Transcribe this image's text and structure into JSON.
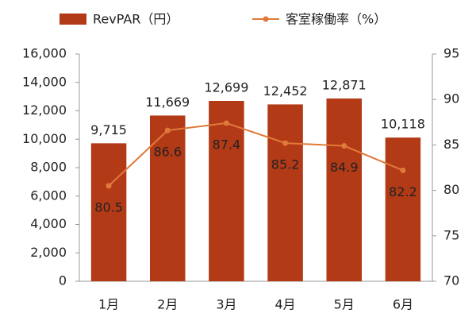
{
  "chart_data": {
    "type": "bar",
    "categories": [
      "1月",
      "2月",
      "3月",
      "4月",
      "5月",
      "6月"
    ],
    "series": [
      {
        "name": "RevPAR（円）",
        "color": "#b23a17",
        "values": [
          9715,
          11669,
          12699,
          12452,
          12871,
          10118
        ],
        "value_labels": [
          "9,715",
          "11,669",
          "12,699",
          "12,452",
          "12,871",
          "10,118"
        ]
      },
      {
        "name": "客室稼働率（%）",
        "type": "line",
        "axis": "y2",
        "color": "#e07a3a",
        "values": [
          80.5,
          86.6,
          87.4,
          85.2,
          84.9,
          82.2
        ]
      }
    ],
    "ylim": [
      0,
      16000
    ],
    "yticks": [
      0,
      {
        "value": 2000,
        "label": "2,000"
      },
      {
        "value": 4000,
        "label": "4,000"
      },
      {
        "value": 6000,
        "label": "6,000"
      },
      {
        "value": 8000,
        "label": "8,000"
      },
      {
        "value": 10000,
        "label": "10,000"
      },
      {
        "value": 12000,
        "label": "12,000"
      },
      {
        "value": 14000,
        "label": "14,000"
      },
      {
        "value": 16000,
        "label": "16,000"
      }
    ],
    "y2lim": [
      70,
      95
    ],
    "y2ticks": [
      70,
      75,
      80,
      85,
      90,
      95
    ],
    "grid": false
  }
}
